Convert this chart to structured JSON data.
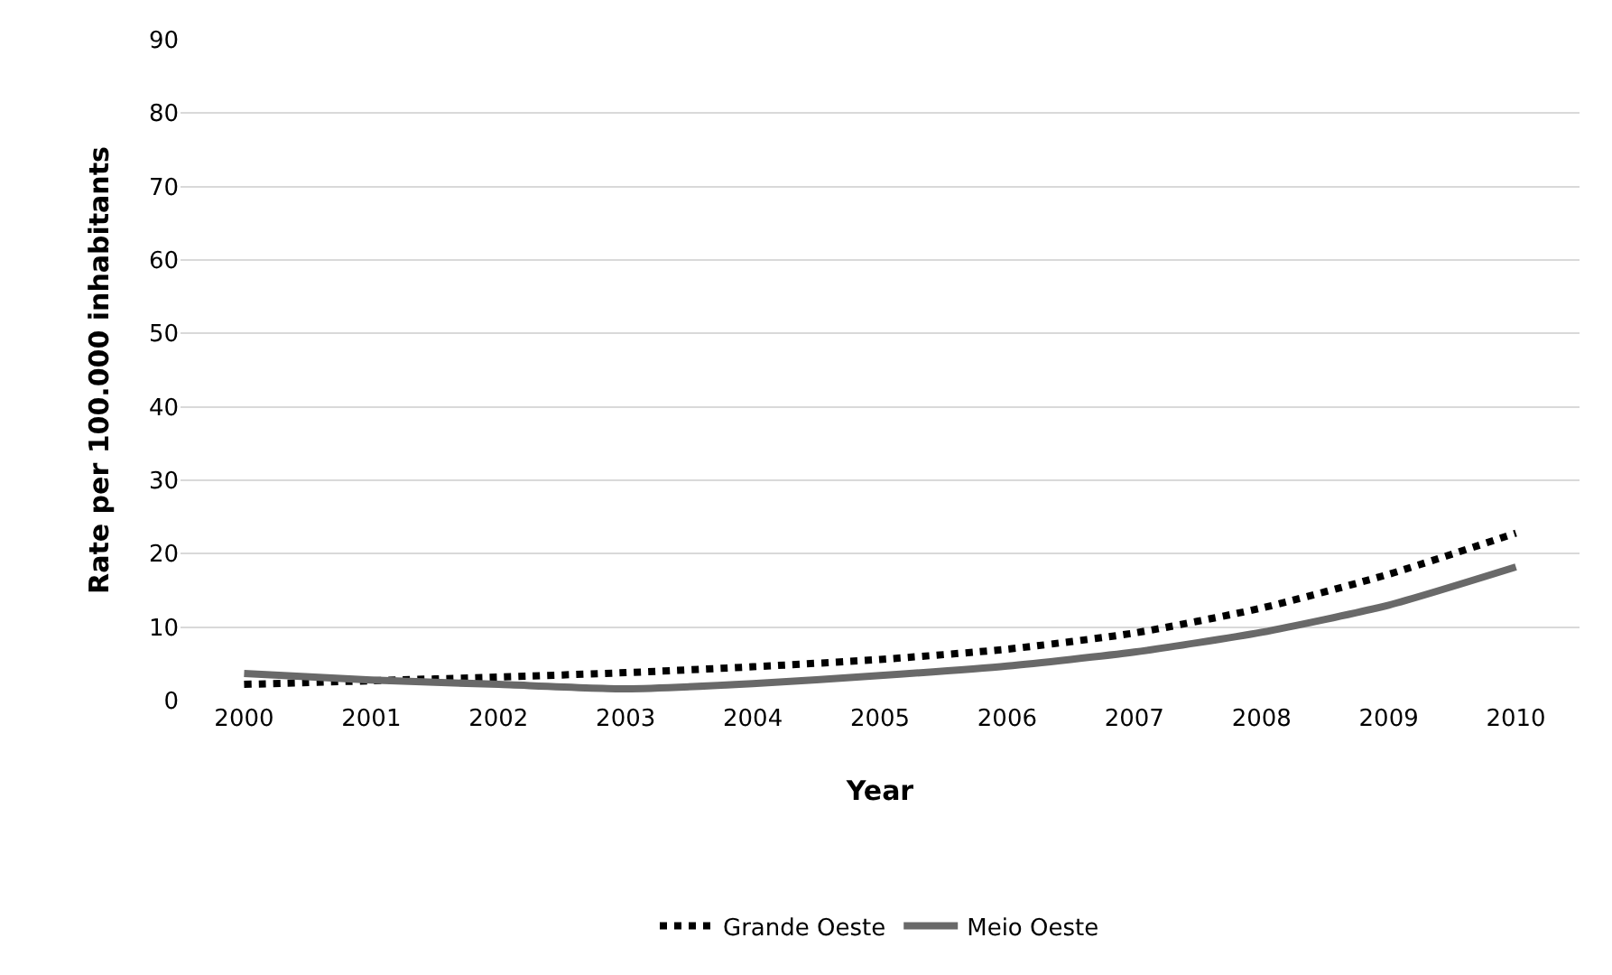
{
  "chart_data": {
    "type": "line",
    "xlabel": "Year",
    "ylabel": "Rate per 100.000 inhabitants",
    "categories": [
      "2000",
      "2001",
      "2002",
      "2003",
      "2004",
      "2005",
      "2006",
      "2007",
      "2008",
      "2009",
      "2010"
    ],
    "series": [
      {
        "name": "Grande Oeste",
        "color": "#000000",
        "line_style": "dotted",
        "values": [
          2.2,
          2.7,
          3.2,
          3.8,
          4.6,
          5.6,
          7.0,
          9.2,
          12.6,
          17.2,
          22.8
        ]
      },
      {
        "name": "Meio Oeste",
        "color": "#696969",
        "line_style": "solid",
        "values": [
          3.7,
          2.8,
          2.2,
          1.6,
          2.3,
          3.4,
          4.7,
          6.6,
          9.3,
          13.0,
          18.2
        ]
      }
    ],
    "ylim": [
      0,
      90
    ],
    "yticks": [
      0,
      10,
      20,
      30,
      40,
      50,
      60,
      70,
      80,
      90
    ],
    "grid": "y",
    "legend": "bottom",
    "marker": "none"
  }
}
